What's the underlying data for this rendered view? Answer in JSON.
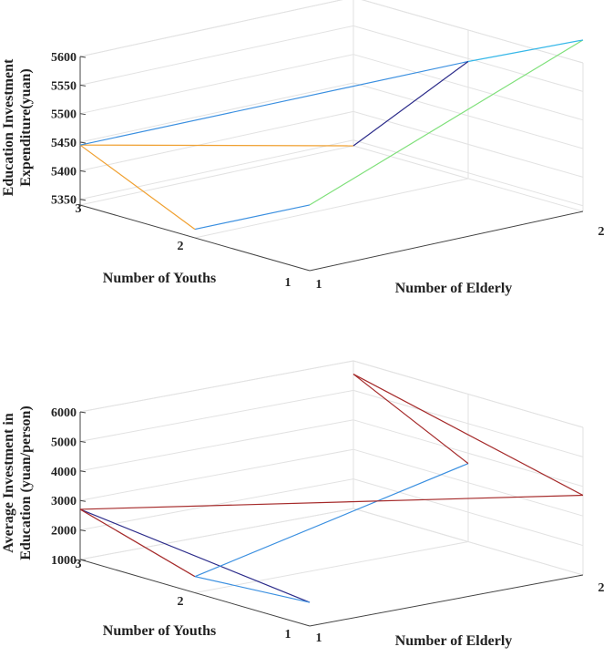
{
  "chart_data": [
    {
      "type": "line",
      "z_label_lines": [
        "Education Investment",
        "Expenditure(yuan)"
      ],
      "x_label": "Number of Elderly",
      "y_label": "Number of Youths",
      "x_ticks": [
        "1",
        "2"
      ],
      "y_ticks": [
        "1",
        "2",
        "3"
      ],
      "z_ticks": [
        "5350",
        "5400",
        "5450",
        "5500",
        "5550",
        "5600"
      ],
      "z_range": [
        5340,
        5600
      ],
      "points": [
        {
          "elderly": 1,
          "youths": 3,
          "value": 5455
        },
        {
          "elderly": 1,
          "youths": 2,
          "value": 5355
        },
        {
          "elderly": 1,
          "youths": 1,
          "value": 5445
        },
        {
          "elderly": 2,
          "youths": 3,
          "value": 5640
        },
        {
          "elderly": 2,
          "youths": 2,
          "value": 5545
        },
        {
          "elderly": 2,
          "youths": 1,
          "value": 5340
        }
      ],
      "segments": [
        {
          "from": 0,
          "to": 3,
          "color": "#7fe07a"
        },
        {
          "from": 0,
          "to": 1,
          "color": "#3a8fe0"
        },
        {
          "from": 1,
          "to": 2,
          "color": "#f0a030"
        },
        {
          "from": 2,
          "to": 5,
          "color": "#f0a030"
        },
        {
          "from": 2,
          "to": 4,
          "color": "#3a8fe0"
        },
        {
          "from": 3,
          "to": 4,
          "color": "#35b7e8"
        },
        {
          "from": 4,
          "to": 5,
          "color": "#2b2b8a"
        }
      ]
    },
    {
      "type": "line",
      "z_label_lines": [
        "Average Investment in",
        "Education (yuan/person)"
      ],
      "x_label": "Number of Elderly",
      "y_label": "Number of Youths",
      "x_ticks": [
        "1",
        "2"
      ],
      "y_ticks": [
        "1",
        "2",
        "3"
      ],
      "z_ticks": [
        "1000",
        "2000",
        "3000",
        "4000",
        "5000",
        "6000"
      ],
      "z_range": [
        1000,
        6000
      ],
      "points": [
        {
          "elderly": 1,
          "youths": 3,
          "value": 1800
        },
        {
          "elderly": 1,
          "youths": 2,
          "value": 1550
        },
        {
          "elderly": 1,
          "youths": 1,
          "value": 2700
        },
        {
          "elderly": 2,
          "youths": 3,
          "value": 3700
        },
        {
          "elderly": 2,
          "youths": 2,
          "value": 3650
        },
        {
          "elderly": 2,
          "youths": 1,
          "value": 5550
        }
      ],
      "segments": [
        {
          "from": 0,
          "to": 2,
          "color": "#2b2b8a"
        },
        {
          "from": 0,
          "to": 1,
          "color": "#3a8fe0"
        },
        {
          "from": 1,
          "to": 2,
          "color": "#a52a2a"
        },
        {
          "from": 1,
          "to": 4,
          "color": "#3a8fe0"
        },
        {
          "from": 2,
          "to": 3,
          "color": "#a52a2a"
        },
        {
          "from": 3,
          "to": 5,
          "color": "#a52a2a"
        },
        {
          "from": 4,
          "to": 5,
          "color": "#a52a2a"
        }
      ]
    }
  ]
}
